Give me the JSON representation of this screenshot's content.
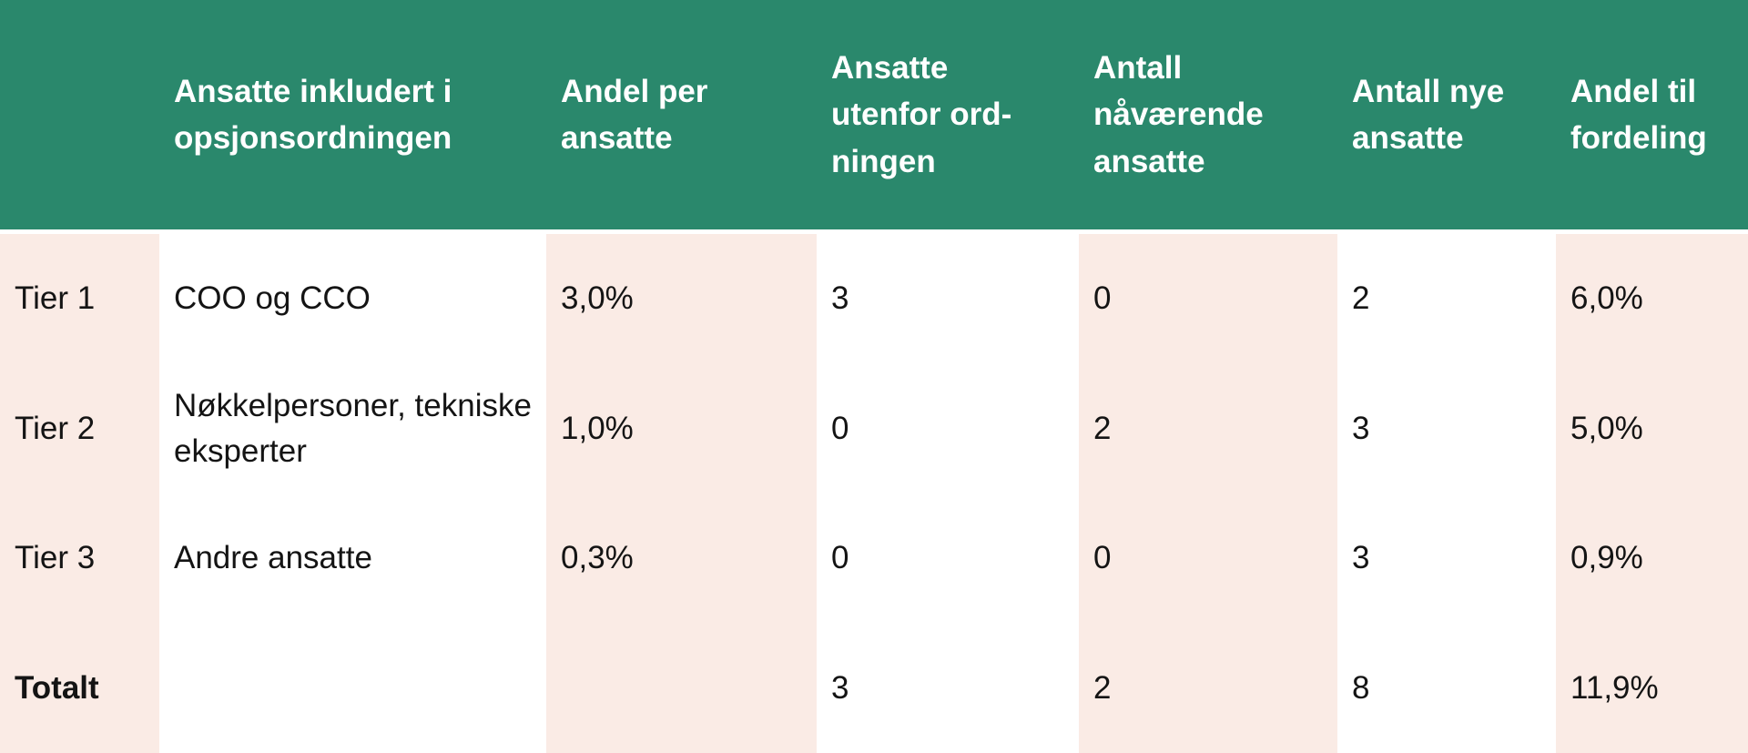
{
  "chart_data": {
    "type": "table",
    "title": "",
    "columns": [
      "",
      "Ansatte inkludert i opsjonsordningen",
      "Andel per ansatte",
      "Ansatte utenfor ord-ningen",
      "Antall nåværende ansatte",
      "Antall nye ansatte",
      "Andel til fordeling"
    ],
    "rows": [
      [
        "Tier 1",
        "COO og CCO",
        "3,0%",
        "3",
        "0",
        "2",
        "6,0%"
      ],
      [
        "Tier 2",
        "Nøkkelpersoner, tekniske eksperter",
        "1,0%",
        "0",
        "2",
        "3",
        "5,0%"
      ],
      [
        "Tier 3",
        "Andre ansatte",
        "0,3%",
        "0",
        "0",
        "3",
        "0,9%"
      ],
      [
        "Totalt",
        "",
        "",
        "3",
        "2",
        "8",
        "11,9%"
      ]
    ],
    "layout": {
      "striped_columns": [
        1,
        3,
        5,
        7
      ],
      "header_position": "top",
      "grid": "none"
    }
  },
  "colors": {
    "header_bg": "#2A886C",
    "header_text": "#FFFFFF",
    "stripe_bg": "#FAEBE5",
    "body_text": "#141414",
    "row_bg": "#FFFFFF"
  }
}
